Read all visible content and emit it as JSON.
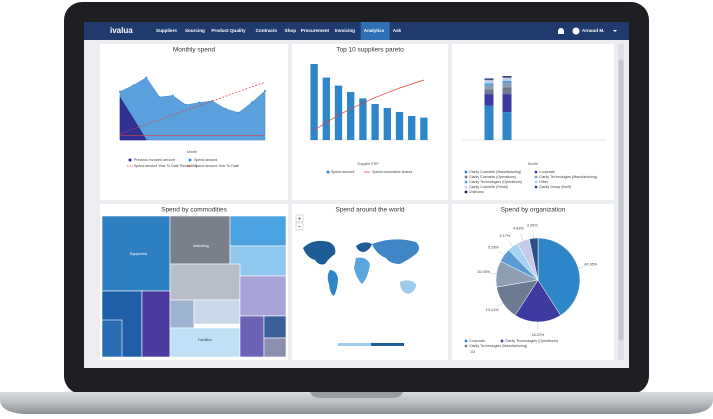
{
  "nav": {
    "logo": "ivalua",
    "items": [
      "Suppliers",
      "Sourcing",
      "Product Quality",
      "Contracts",
      "Shop",
      "Procurement",
      "Invoicing",
      "Analytics",
      "Ask"
    ],
    "active": 7,
    "user": "Arnaud M."
  },
  "monthly_spend": {
    "title": "Monthly spend",
    "x_label": "Month",
    "ylim": [
      0,
      100
    ],
    "series": [
      {
        "name": "Previous invoiced amount",
        "kind": "area",
        "color": "#2d2a8c",
        "values": [
          55,
          28,
          0
        ]
      },
      {
        "name": "Spend amount",
        "kind": "area",
        "color": "#3d8fd6",
        "values": [
          62,
          70,
          80,
          55,
          57,
          45,
          48,
          50,
          40,
          35,
          48,
          63
        ]
      },
      {
        "name": "Spend amount Year To Date Period N-1",
        "kind": "dash",
        "color": "#e0413a",
        "values": [
          8,
          14,
          20,
          26,
          32,
          38,
          44,
          50,
          56,
          62,
          68,
          74
        ]
      },
      {
        "name": "Spend amount Year To Date",
        "kind": "line",
        "color": "#e0413a",
        "values": [
          6,
          6,
          6,
          6,
          6,
          6,
          6,
          6,
          6,
          6,
          6,
          6
        ]
      }
    ]
  },
  "pareto": {
    "title": "Top 10 suppliers pareto",
    "x_label": "Supplier ERP",
    "ylim": [
      0,
      100
    ],
    "bars": {
      "name": "Spend amount",
      "color": "#2e86c9",
      "values": [
        95,
        78,
        68,
        60,
        52,
        45,
        40,
        35,
        30,
        28
      ]
    },
    "line": {
      "name": "Spend cumulative shares",
      "color": "#e0413a",
      "values": [
        12,
        22,
        31,
        39,
        46,
        53,
        59,
        65,
        70,
        75
      ]
    }
  },
  "org_monthly": {
    "x_label": "Month",
    "ylim": [
      0,
      100
    ],
    "series": [
      {
        "name": "Clarity Cosmetic (Manufacturing)",
        "color": "#2e86c9",
        "values": [
          42,
          34
        ]
      },
      {
        "name": "Corporate",
        "color": "#3d3aa0",
        "values": [
          14,
          22
        ]
      },
      {
        "name": "Clarity Cosmetic (Operations)",
        "color": "#6b7a90",
        "values": [
          6,
          8
        ]
      },
      {
        "name": "Clarity Technologies (Manufacturing)",
        "color": "#8e9fb5",
        "values": [
          4,
          5
        ]
      },
      {
        "name": "Clarity Technologies (Operations)",
        "color": "#5b9bd5",
        "values": [
          3,
          3
        ]
      },
      {
        "name": "Other",
        "color": "#a8d4f2",
        "values": [
          2,
          2
        ]
      },
      {
        "name": "Clarity Cosmetic (Retail)",
        "color": "#c7c9e8",
        "values": [
          2,
          2
        ]
      },
      {
        "name": "Clarity Group (Itself)",
        "color": "#2a4e8a",
        "values": [
          1,
          1
        ]
      },
      {
        "name": "Unknown",
        "color": "#1b1f5e",
        "values": [
          1,
          1
        ]
      }
    ]
  },
  "commodities": {
    "title": "Spend by commodities",
    "labels": [
      "Equipment",
      "Marketing",
      "Facilities"
    ]
  },
  "world": {
    "title": "Spend around the world"
  },
  "organization": {
    "title": "Spend by organization",
    "values": [
      40.95,
      18.22,
      13.14,
      10.06,
      5.28,
      4.17,
      4.83,
      3.35
    ],
    "value_labels": [
      "40.95%",
      "18.22%",
      "13.14%",
      "10.06%",
      "5.28%",
      "4.17%",
      "4.83%",
      "3.35%"
    ],
    "colors": [
      "#2e86c9",
      "#3d3aa0",
      "#6b7a90",
      "#8e9fb5",
      "#5b9bd5",
      "#a8d4f2",
      "#c7c9e8",
      "#2a4e8a"
    ],
    "legend": [
      "Corporate",
      "Clarity Technologies (Operations)",
      "Clarity Technologies (Manufacturing)"
    ],
    "pager": "1/3"
  }
}
